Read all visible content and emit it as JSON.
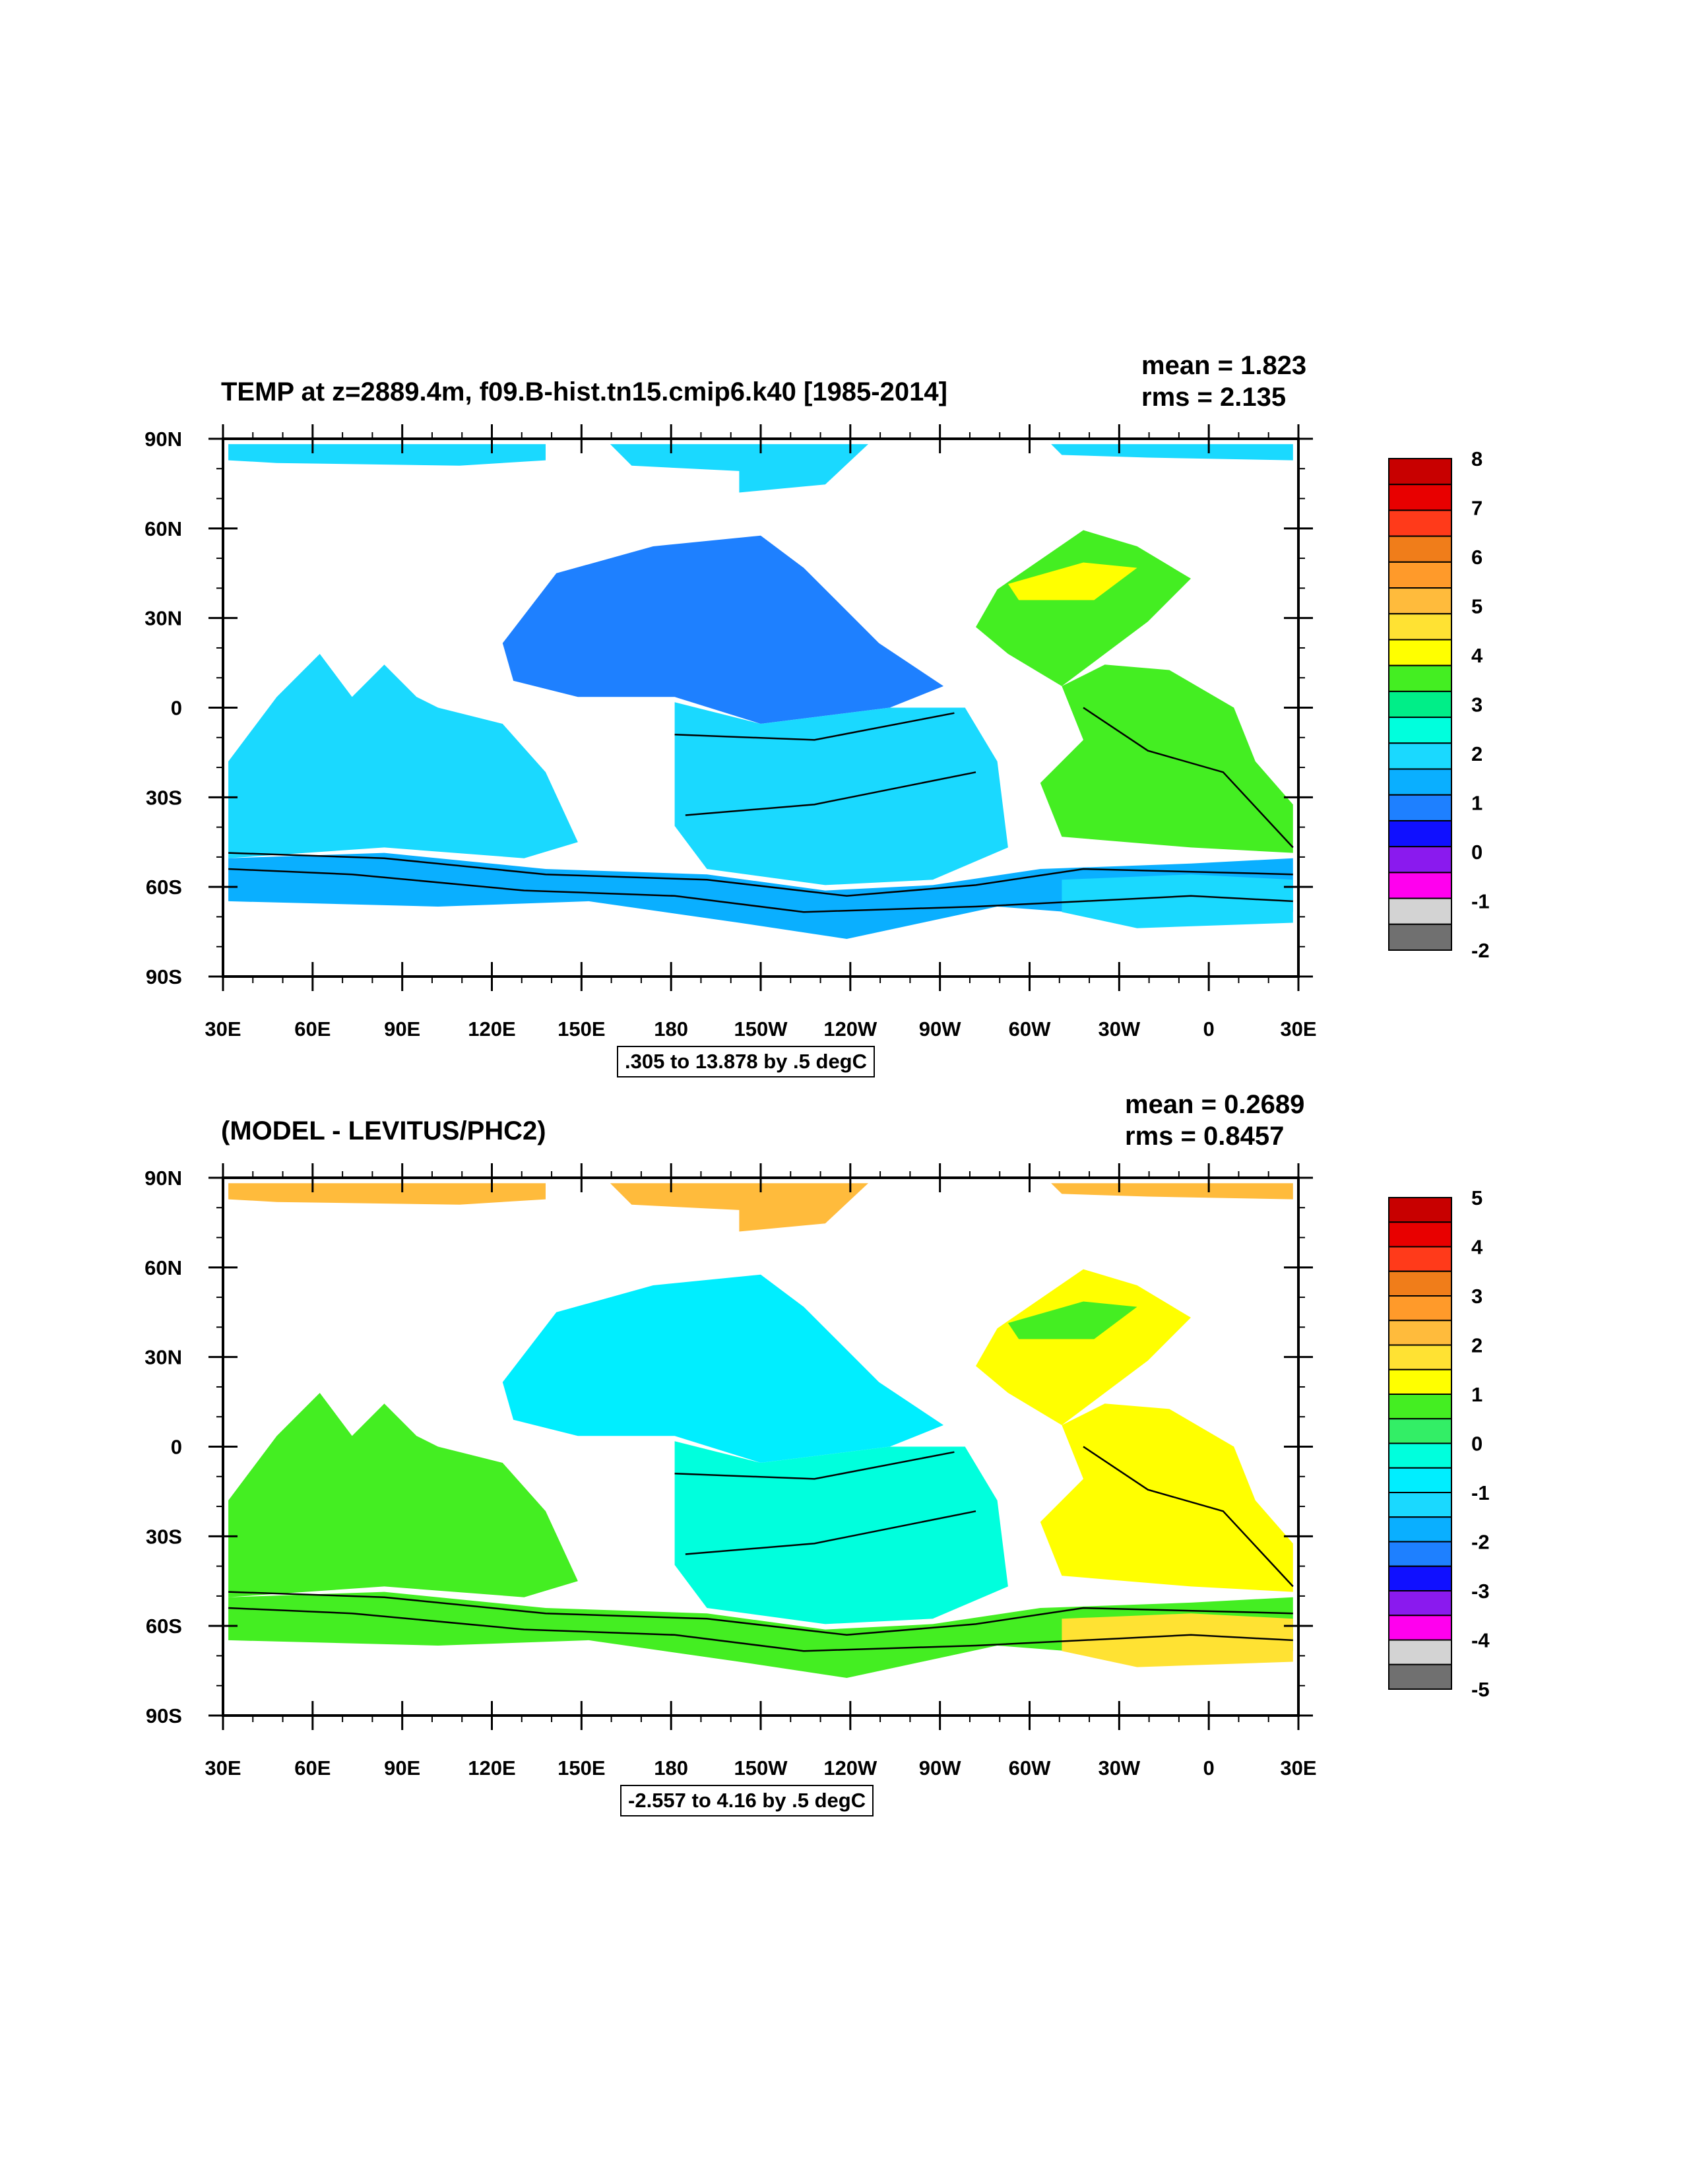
{
  "panels": [
    {
      "title": "TEMP at z=2889.4m, f09.B-hist.tn15.cmip6.k40 [1985-2014]",
      "mean": "mean = 1.823",
      "rms": "rms = 2.135",
      "range_label": ".305 to 13.878 by .5 degC",
      "colorbar_labels": [
        "8",
        "7",
        "6",
        "5",
        "4",
        "3",
        "2",
        "1",
        "0",
        "-1",
        "-2"
      ],
      "colorbar_colors": [
        "#c80000",
        "#e80000",
        "#ff3a1a",
        "#f07d1a",
        "#ff9a2a",
        "#ffbb3c",
        "#ffe233",
        "#ffff00",
        "#44ee22",
        "#00ee88",
        "#00ffdd",
        "#1ad9ff",
        "#0aafff",
        "#1e80ff",
        "#1010ff",
        "#8a1aee",
        "#ff00ee",
        "#d3d3d3",
        "#707070"
      ],
      "regions": {
        "arctic": "#1ad9ff",
        "pacific_north": "#1e80ff",
        "pacific_south": "#1ad9ff",
        "indian": "#1ad9ff",
        "southern": "#0aafff",
        "atlantic_north": "#44ee22",
        "atlantic_south": "#44ee22",
        "atlantic_nw": "#ffff00",
        "weddell": "#1ad9ff"
      }
    },
    {
      "title": "(MODEL - LEVITUS/PHC2)",
      "mean": "mean = 0.2689",
      "rms": "rms = 0.8457",
      "range_label": "-2.557 to 4.16 by .5 degC",
      "colorbar_labels": [
        "5",
        "4",
        "3",
        "2",
        "1",
        "0",
        "-1",
        "-2",
        "-3",
        "-4",
        "-5"
      ],
      "colorbar_colors": [
        "#c80000",
        "#e80000",
        "#ff3a1a",
        "#f07d1a",
        "#ff9a2a",
        "#ffbb3c",
        "#ffe233",
        "#ffff00",
        "#44ee22",
        "#33ee66",
        "#00ffdd",
        "#00eeff",
        "#1ad9ff",
        "#0aafff",
        "#1e80ff",
        "#1010ff",
        "#8a1aee",
        "#ff00ee",
        "#d3d3d3",
        "#707070"
      ],
      "regions": {
        "arctic": "#ffbb3c",
        "pacific_north": "#00eeff",
        "pacific_south": "#00ffdd",
        "indian": "#44ee22",
        "southern": "#44ee22",
        "atlantic_north": "#ffff00",
        "atlantic_south": "#ffff00",
        "atlantic_nw": "#44ee22",
        "weddell": "#ffe233"
      }
    }
  ],
  "lat_labels": [
    "90N",
    "60N",
    "30N",
    "0",
    "30S",
    "60S",
    "90S"
  ],
  "lon_labels": [
    "30E",
    "60E",
    "90E",
    "120E",
    "150E",
    "180",
    "150W",
    "120W",
    "90W",
    "60W",
    "30W",
    "0",
    "30E"
  ]
}
